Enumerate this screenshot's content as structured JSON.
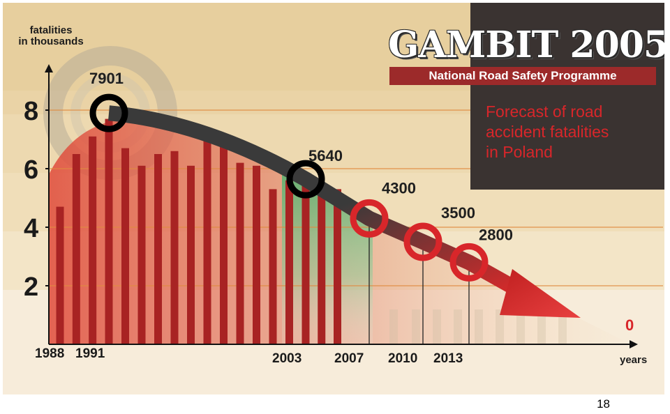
{
  "page_number": "18",
  "header": {
    "title": "GAMBIT 2005",
    "subtitle": "National Road Safety Programme",
    "forecast_lines": [
      "Forecast of road",
      "accident fatalities",
      "in Poland"
    ]
  },
  "colors": {
    "background": "#ecd6ab",
    "bar": "#a82323",
    "trend_arrow": "#3a3a3a",
    "ring_historic": "#000000",
    "ring_forecast": "#d8262a",
    "guide_line": "#e08a40",
    "banner": "#3a3331",
    "subtitle_bar": "#9c2a2a",
    "forecast_text": "#d8262a"
  },
  "chart_data": {
    "type": "bar",
    "ylabel": [
      "fatalities",
      "in thousands"
    ],
    "xlabel": "years",
    "ylim": [
      0,
      9
    ],
    "y_ticks": [
      2,
      4,
      6,
      8
    ],
    "x_tick_labels": [
      "1988",
      "1991",
      "2003",
      "2007",
      "2010",
      "2013"
    ],
    "series": [
      {
        "type": "bar",
        "x": [
          1988,
          1989,
          1990,
          1991,
          1992,
          1993,
          1994,
          1995,
          1996,
          1997,
          1998,
          1999,
          2000,
          2001,
          2002,
          2003,
          2004,
          2005
        ],
        "values": [
          4.7,
          6.5,
          7.1,
          7.7,
          6.7,
          6.1,
          6.5,
          6.6,
          6.1,
          7.1,
          6.9,
          6.2,
          6.1,
          5.3,
          5.6,
          5.5,
          5.5,
          5.3
        ]
      },
      {
        "type": "line",
        "x": [
          1991,
          2003,
          2007,
          2010,
          2013,
          2020
        ],
        "values": [
          7.901,
          5.64,
          4.3,
          3.5,
          2.8,
          0
        ]
      }
    ],
    "annotations": [
      {
        "x": 1991,
        "value": 7.901,
        "label": "7901",
        "style": "historic"
      },
      {
        "x": 2003,
        "value": 5.64,
        "label": "5640",
        "style": "historic"
      },
      {
        "x": 2007,
        "value": 4.3,
        "label": "4300",
        "style": "forecast"
      },
      {
        "x": 2010,
        "value": 3.5,
        "label": "3500",
        "style": "forecast"
      },
      {
        "x": 2013,
        "value": 2.8,
        "label": "2800",
        "style": "forecast"
      }
    ],
    "end_label": "0"
  }
}
